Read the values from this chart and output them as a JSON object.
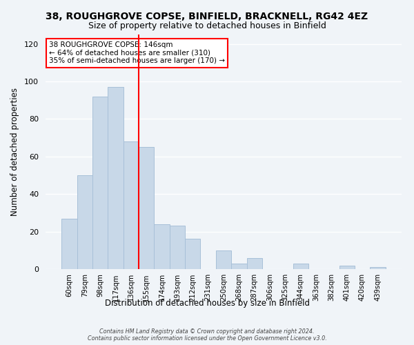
{
  "title": "38, ROUGHGROVE COPSE, BINFIELD, BRACKNELL, RG42 4EZ",
  "subtitle": "Size of property relative to detached houses in Binfield",
  "xlabel": "Distribution of detached houses by size in Binfield",
  "ylabel": "Number of detached properties",
  "bar_labels": [
    "60sqm",
    "79sqm",
    "98sqm",
    "117sqm",
    "136sqm",
    "155sqm",
    "174sqm",
    "193sqm",
    "212sqm",
    "231sqm",
    "250sqm",
    "268sqm",
    "287sqm",
    "306sqm",
    "325sqm",
    "344sqm",
    "363sqm",
    "382sqm",
    "401sqm",
    "420sqm",
    "439sqm"
  ],
  "bar_values": [
    27,
    50,
    92,
    97,
    68,
    65,
    24,
    23,
    16,
    0,
    10,
    3,
    6,
    0,
    0,
    3,
    0,
    0,
    2,
    0,
    1
  ],
  "bar_color": "#c8d8e8",
  "bar_edge_color": "#a8c0d8",
  "vline_x": 4.5,
  "vline_color": "red",
  "ylim": [
    0,
    125
  ],
  "yticks": [
    0,
    20,
    40,
    60,
    80,
    100,
    120
  ],
  "annotation_line1": "38 ROUGHGROVE COPSE: 146sqm",
  "annotation_line2": "← 64% of detached houses are smaller (310)",
  "annotation_line3": "35% of semi-detached houses are larger (170) →",
  "annotation_box_color": "#ffffff",
  "annotation_box_edge": "red",
  "footer_line1": "Contains HM Land Registry data © Crown copyright and database right 2024.",
  "footer_line2": "Contains public sector information licensed under the Open Government Licence v3.0.",
  "background_color": "#f0f4f8",
  "plot_background": "#f0f4f8",
  "title_fontsize": 10,
  "subtitle_fontsize": 9
}
